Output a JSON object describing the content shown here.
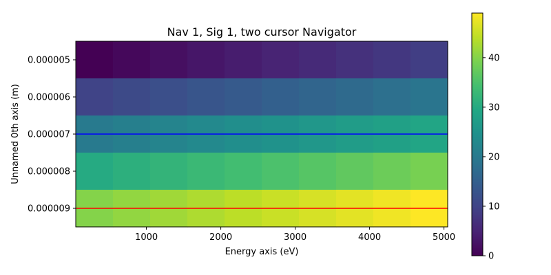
{
  "chart_data": {
    "type": "heatmap",
    "title": "Nav 1, Sig 1, two cursor Navigator",
    "xlabel": "Energy axis (eV)",
    "ylabel": "Unnamed 0th axis (m)",
    "x_start": 50,
    "x_end": 5050,
    "x_bins": 10,
    "y_start": 4.5e-06,
    "y_end": 9.5e-06,
    "y_bins": 5,
    "x_ticks": [
      1000,
      2000,
      3000,
      4000,
      5000
    ],
    "x_tick_labels": [
      "1000",
      "2000",
      "3000",
      "4000",
      "5000"
    ],
    "y_ticks": [
      5e-06,
      6e-06,
      7e-06,
      8e-06,
      9e-06
    ],
    "y_tick_labels": [
      "0.000005",
      "0.000006",
      "0.000007",
      "0.000008",
      "0.000009"
    ],
    "values": [
      [
        0,
        1,
        2,
        3,
        4,
        5,
        6,
        7,
        8,
        9
      ],
      [
        10,
        11,
        12,
        13,
        14,
        15,
        16,
        17,
        18,
        19
      ],
      [
        20,
        21,
        22,
        23,
        24,
        25,
        26,
        27,
        28,
        29
      ],
      [
        30,
        31,
        32,
        33,
        34,
        35,
        36,
        37,
        38,
        39
      ],
      [
        40,
        41,
        42,
        43,
        44,
        45,
        46,
        47,
        48,
        49
      ]
    ],
    "colormap": "viridis",
    "colorbar": {
      "vmin": 0,
      "vmax": 49,
      "ticks": [
        0,
        10,
        20,
        30,
        40
      ],
      "tick_labels": [
        "0",
        "10",
        "20",
        "30",
        "40"
      ]
    },
    "cursors": [
      {
        "y": 7e-06,
        "color": "#0000ff"
      },
      {
        "y": 9e-06,
        "color": "#ff0000"
      }
    ],
    "grid": false
  }
}
